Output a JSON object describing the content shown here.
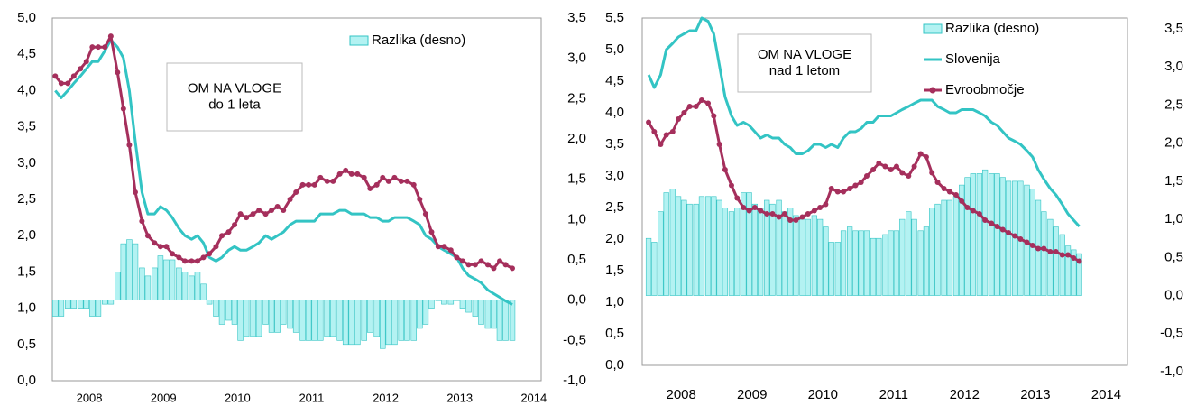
{
  "chart_data": [
    {
      "type": "line",
      "annotation": [
        "OM NA VLOGE",
        "do 1 leta"
      ],
      "xlim": [
        2008,
        2014.6
      ],
      "xticks": [
        {
          "value": 2008.5,
          "label": "2008"
        },
        {
          "value": 2009.5,
          "label": "2009"
        },
        {
          "value": 2010.5,
          "label": "2010"
        },
        {
          "value": 2011.5,
          "label": "2011"
        },
        {
          "value": 2012.5,
          "label": "2012"
        },
        {
          "value": 2013.5,
          "label": "2013"
        },
        {
          "value": 2014.5,
          "label": "2014"
        }
      ],
      "ylim": [
        0,
        5
      ],
      "yticks": [
        {
          "value": 0,
          "label": "0,0"
        },
        {
          "value": 0.5,
          "label": "0,5"
        },
        {
          "value": 1,
          "label": "1,0"
        },
        {
          "value": 1.5,
          "label": "1,5"
        },
        {
          "value": 2,
          "label": "2,0"
        },
        {
          "value": 2.5,
          "label": "2,5"
        },
        {
          "value": 3,
          "label": "3,0"
        },
        {
          "value": 3.5,
          "label": "3,5"
        },
        {
          "value": 4,
          "label": "4,0"
        },
        {
          "value": 4.5,
          "label": "4,5"
        },
        {
          "value": 5,
          "label": "5,0"
        }
      ],
      "y2lim": [
        -1,
        3.5
      ],
      "y2ticks": [
        {
          "value": -1,
          "label": "-1,0"
        },
        {
          "value": -0.5,
          "label": "-0,5"
        },
        {
          "value": 0,
          "label": "0,0"
        },
        {
          "value": 0.5,
          "label": "0,5"
        },
        {
          "value": 1,
          "label": "1,0"
        },
        {
          "value": 1.5,
          "label": "1,5"
        },
        {
          "value": 2,
          "label": "2,0"
        },
        {
          "value": 2.5,
          "label": "2,5"
        },
        {
          "value": 3,
          "label": "3,0"
        },
        {
          "value": 3.5,
          "label": "3,5"
        }
      ],
      "x": [
        2008.04,
        2008.12,
        2008.21,
        2008.29,
        2008.38,
        2008.46,
        2008.54,
        2008.62,
        2008.71,
        2008.79,
        2008.88,
        2008.96,
        2009.04,
        2009.12,
        2009.21,
        2009.29,
        2009.38,
        2009.46,
        2009.54,
        2009.62,
        2009.71,
        2009.79,
        2009.88,
        2009.96,
        2010.04,
        2010.12,
        2010.21,
        2010.29,
        2010.38,
        2010.46,
        2010.54,
        2010.62,
        2010.71,
        2010.79,
        2010.88,
        2010.96,
        2011.04,
        2011.12,
        2011.21,
        2011.29,
        2011.38,
        2011.46,
        2011.54,
        2011.62,
        2011.71,
        2011.79,
        2011.88,
        2011.96,
        2012.04,
        2012.12,
        2012.21,
        2012.29,
        2012.38,
        2012.46,
        2012.54,
        2012.62,
        2012.71,
        2012.79,
        2012.88,
        2012.96,
        2013.04,
        2013.12,
        2013.21,
        2013.29,
        2013.38,
        2013.46,
        2013.54,
        2013.62,
        2013.71,
        2013.79,
        2013.88,
        2013.96,
        2014.04,
        2014.12,
        2014.21
      ],
      "series": [
        {
          "name": "Razlika (desno)",
          "type": "bar",
          "axis": "y2",
          "color": "#b3f2f2",
          "stroke": "#33c4c4",
          "values": [
            -0.2,
            -0.2,
            -0.1,
            -0.1,
            -0.1,
            -0.1,
            -0.2,
            -0.2,
            -0.05,
            -0.05,
            0.35,
            0.7,
            0.75,
            0.7,
            0.4,
            0.3,
            0.4,
            0.55,
            0.5,
            0.5,
            0.4,
            0.35,
            0.3,
            0.35,
            0.2,
            -0.05,
            -0.2,
            -0.3,
            -0.25,
            -0.3,
            -0.5,
            -0.45,
            -0.45,
            -0.45,
            -0.3,
            -0.4,
            -0.4,
            -0.3,
            -0.35,
            -0.4,
            -0.5,
            -0.5,
            -0.5,
            -0.5,
            -0.45,
            -0.45,
            -0.5,
            -0.55,
            -0.55,
            -0.55,
            -0.5,
            -0.4,
            -0.45,
            -0.6,
            -0.55,
            -0.55,
            -0.5,
            -0.5,
            -0.5,
            -0.35,
            -0.3,
            -0.1,
            0,
            -0.05,
            -0.05,
            0,
            -0.1,
            -0.15,
            -0.2,
            -0.3,
            -0.35,
            -0.35,
            -0.5,
            -0.5,
            -0.5
          ]
        },
        {
          "type": "line",
          "color": "#33c4c4",
          "markers": false,
          "values": [
            4.0,
            3.9,
            4.0,
            4.1,
            4.2,
            4.3,
            4.4,
            4.4,
            4.55,
            4.7,
            4.6,
            4.45,
            4.0,
            3.3,
            2.6,
            2.3,
            2.3,
            2.4,
            2.35,
            2.25,
            2.1,
            2.0,
            1.95,
            2.0,
            1.9,
            1.7,
            1.65,
            1.7,
            1.8,
            1.85,
            1.8,
            1.8,
            1.85,
            1.9,
            2.0,
            1.95,
            2.0,
            2.05,
            2.15,
            2.2,
            2.2,
            2.2,
            2.2,
            2.3,
            2.3,
            2.3,
            2.35,
            2.35,
            2.3,
            2.3,
            2.3,
            2.25,
            2.25,
            2.2,
            2.2,
            2.25,
            2.25,
            2.25,
            2.2,
            2.15,
            2.0,
            1.95,
            1.85,
            1.8,
            1.75,
            1.7,
            1.55,
            1.45,
            1.4,
            1.35,
            1.25,
            1.2,
            1.15,
            1.1,
            1.05
          ]
        },
        {
          "type": "line",
          "color": "#a52f5c",
          "markers": true,
          "values": [
            4.2,
            4.1,
            4.1,
            4.2,
            4.3,
            4.4,
            4.6,
            4.6,
            4.6,
            4.75,
            4.25,
            3.75,
            3.25,
            2.6,
            2.2,
            2.0,
            1.9,
            1.85,
            1.85,
            1.75,
            1.7,
            1.65,
            1.65,
            1.65,
            1.7,
            1.75,
            1.85,
            2.0,
            2.05,
            2.15,
            2.3,
            2.25,
            2.3,
            2.35,
            2.3,
            2.35,
            2.4,
            2.35,
            2.5,
            2.6,
            2.7,
            2.7,
            2.7,
            2.8,
            2.75,
            2.75,
            2.85,
            2.9,
            2.85,
            2.85,
            2.8,
            2.65,
            2.7,
            2.8,
            2.75,
            2.8,
            2.75,
            2.75,
            2.7,
            2.5,
            2.3,
            2.05,
            1.85,
            1.85,
            1.8,
            1.7,
            1.65,
            1.6,
            1.6,
            1.65,
            1.6,
            1.55,
            1.65,
            1.6,
            1.55
          ]
        }
      ]
    },
    {
      "type": "line",
      "annotation": [
        "OM NA VLOGE",
        "nad 1 letom"
      ],
      "xlim": [
        2007.95,
        2014.8
      ],
      "xticks": [
        {
          "value": 2008.5,
          "label": "2008"
        },
        {
          "value": 2009.5,
          "label": "2009"
        },
        {
          "value": 2010.5,
          "label": "2010"
        },
        {
          "value": 2011.5,
          "label": "2011"
        },
        {
          "value": 2012.5,
          "label": "2012"
        },
        {
          "value": 2013.5,
          "label": "2013"
        },
        {
          "value": 2014.5,
          "label": "2014"
        }
      ],
      "ylim": [
        0,
        5.5
      ],
      "yticks": [
        {
          "value": 0,
          "label": "0,0"
        },
        {
          "value": 0.5,
          "label": "0,5"
        },
        {
          "value": 1,
          "label": "1,0"
        },
        {
          "value": 1.5,
          "label": "1,5"
        },
        {
          "value": 2,
          "label": "2,0"
        },
        {
          "value": 2.5,
          "label": "2,5"
        },
        {
          "value": 3,
          "label": "3,0"
        },
        {
          "value": 3.5,
          "label": "3,5"
        },
        {
          "value": 4,
          "label": "4,0"
        },
        {
          "value": 4.5,
          "label": "4,5"
        },
        {
          "value": 5,
          "label": "5,0"
        },
        {
          "value": 5.5,
          "label": "5,5"
        }
      ],
      "y2lim": [
        -1,
        3.5
      ],
      "y2ticks": [
        {
          "value": -1,
          "label": "-1,0"
        },
        {
          "value": -0.5,
          "label": "-0,5"
        },
        {
          "value": 0,
          "label": "0,0"
        },
        {
          "value": 0.5,
          "label": "0,5"
        },
        {
          "value": 1,
          "label": "1,0"
        },
        {
          "value": 1.5,
          "label": "1,5"
        },
        {
          "value": 2,
          "label": "2,0"
        },
        {
          "value": 2.5,
          "label": "2,5"
        },
        {
          "value": 3,
          "label": "3,0"
        },
        {
          "value": 3.5,
          "label": "3,5"
        }
      ],
      "x": [
        2008.04,
        2008.12,
        2008.21,
        2008.29,
        2008.38,
        2008.46,
        2008.54,
        2008.62,
        2008.71,
        2008.79,
        2008.88,
        2008.96,
        2009.04,
        2009.12,
        2009.21,
        2009.29,
        2009.38,
        2009.46,
        2009.54,
        2009.62,
        2009.71,
        2009.79,
        2009.88,
        2009.96,
        2010.04,
        2010.12,
        2010.21,
        2010.29,
        2010.38,
        2010.46,
        2010.54,
        2010.62,
        2010.71,
        2010.79,
        2010.88,
        2010.96,
        2011.04,
        2011.12,
        2011.21,
        2011.29,
        2011.38,
        2011.46,
        2011.54,
        2011.62,
        2011.71,
        2011.79,
        2011.88,
        2011.96,
        2012.04,
        2012.12,
        2012.21,
        2012.29,
        2012.38,
        2012.46,
        2012.54,
        2012.62,
        2012.71,
        2012.79,
        2012.88,
        2012.96,
        2013.04,
        2013.12,
        2013.21,
        2013.29,
        2013.38,
        2013.46,
        2013.54,
        2013.62,
        2013.71,
        2013.79,
        2013.88,
        2013.96,
        2014.04,
        2014.12
      ],
      "series": [
        {
          "name": "Razlika (desno)",
          "type": "bar",
          "axis": "y2",
          "color": "#b3f2f2",
          "stroke": "#33c4c4",
          "values": [
            0.75,
            0.7,
            1.1,
            1.35,
            1.4,
            1.3,
            1.25,
            1.2,
            1.2,
            1.3,
            1.3,
            1.3,
            1.25,
            1.15,
            1.1,
            1.15,
            1.35,
            1.35,
            1.2,
            1.15,
            1.25,
            1.2,
            1.25,
            1.1,
            1.15,
            1.05,
            1.0,
            1.0,
            1.05,
            1.0,
            0.9,
            0.7,
            0.7,
            0.85,
            0.9,
            0.85,
            0.85,
            0.85,
            0.75,
            0.75,
            0.8,
            0.85,
            0.85,
            1.0,
            1.1,
            1.0,
            0.85,
            0.9,
            1.15,
            1.2,
            1.25,
            1.25,
            1.3,
            1.45,
            1.55,
            1.6,
            1.6,
            1.65,
            1.6,
            1.6,
            1.55,
            1.5,
            1.5,
            1.5,
            1.45,
            1.4,
            1.25,
            1.1,
            1.0,
            0.9,
            0.8,
            0.65,
            0.6,
            0.55
          ]
        },
        {
          "name": "Slovenija",
          "type": "line",
          "color": "#33c4c4",
          "markers": false,
          "values": [
            4.6,
            4.4,
            4.6,
            5.0,
            5.1,
            5.2,
            5.25,
            5.3,
            5.3,
            5.5,
            5.45,
            5.25,
            4.75,
            4.25,
            3.95,
            3.8,
            3.85,
            3.8,
            3.7,
            3.6,
            3.65,
            3.6,
            3.6,
            3.5,
            3.45,
            3.35,
            3.35,
            3.4,
            3.5,
            3.5,
            3.45,
            3.5,
            3.45,
            3.6,
            3.7,
            3.7,
            3.75,
            3.85,
            3.85,
            3.95,
            3.95,
            3.95,
            4.0,
            4.05,
            4.1,
            4.15,
            4.2,
            4.2,
            4.2,
            4.1,
            4.05,
            4.0,
            4.0,
            4.05,
            4.05,
            4.05,
            4.0,
            3.95,
            3.85,
            3.8,
            3.7,
            3.6,
            3.55,
            3.5,
            3.4,
            3.3,
            3.1,
            2.95,
            2.8,
            2.7,
            2.55,
            2.4,
            2.3,
            2.2
          ]
        },
        {
          "name": "Evroobmočje",
          "type": "line",
          "color": "#a52f5c",
          "markers": true,
          "values": [
            3.85,
            3.7,
            3.5,
            3.65,
            3.7,
            3.9,
            4.0,
            4.1,
            4.1,
            4.2,
            4.15,
            3.95,
            3.5,
            3.1,
            2.85,
            2.65,
            2.5,
            2.45,
            2.5,
            2.45,
            2.4,
            2.4,
            2.35,
            2.4,
            2.3,
            2.3,
            2.35,
            2.4,
            2.45,
            2.5,
            2.55,
            2.8,
            2.75,
            2.75,
            2.8,
            2.85,
            2.9,
            3.0,
            3.1,
            3.2,
            3.15,
            3.1,
            3.15,
            3.05,
            3.0,
            3.15,
            3.35,
            3.3,
            3.05,
            2.9,
            2.8,
            2.75,
            2.7,
            2.6,
            2.5,
            2.45,
            2.4,
            2.3,
            2.25,
            2.2,
            2.15,
            2.1,
            2.05,
            2.0,
            1.95,
            1.9,
            1.85,
            1.85,
            1.8,
            1.8,
            1.75,
            1.75,
            1.7,
            1.65
          ]
        }
      ]
    }
  ]
}
